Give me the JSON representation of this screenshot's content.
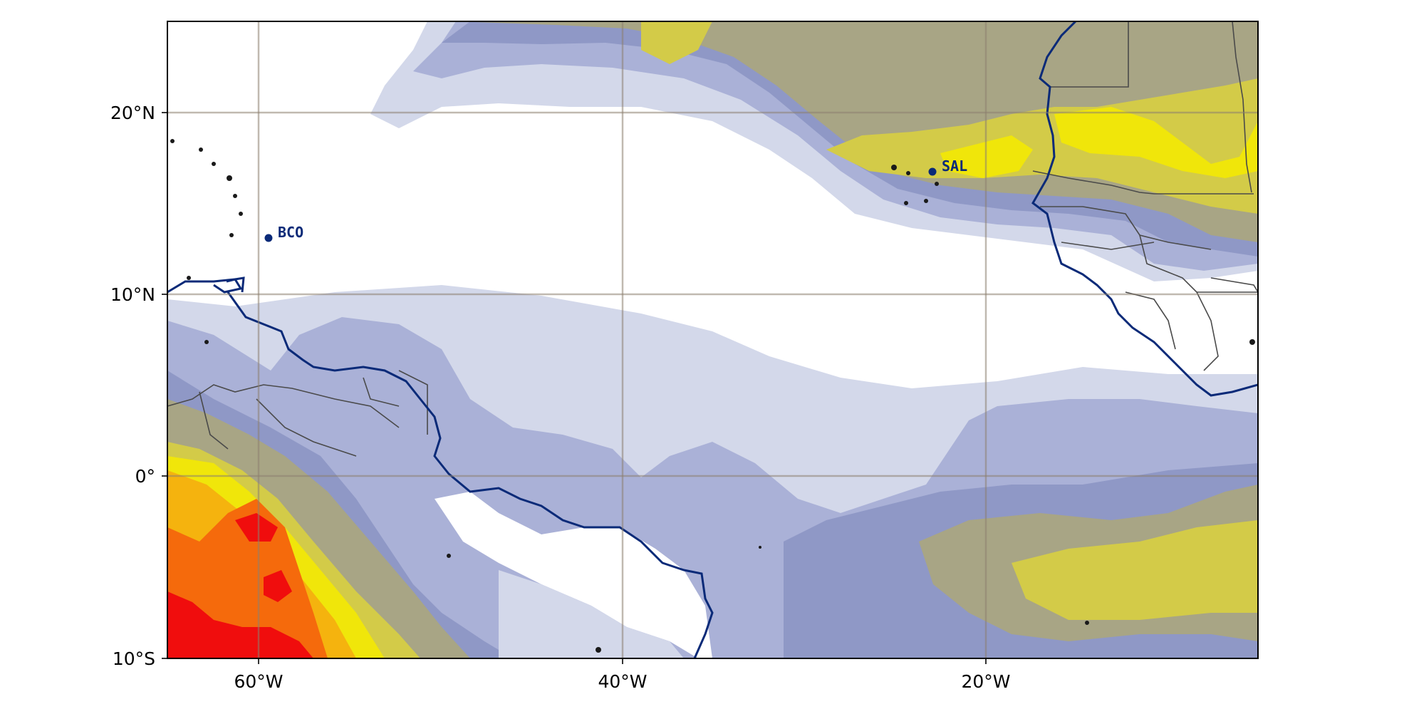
{
  "map": {
    "longitude_ticks": [
      "60°W",
      "40°W",
      "20°W"
    ],
    "latitude_ticks": [
      "20°N",
      "10°N",
      "0°",
      "10°S"
    ],
    "stations": [
      {
        "label": "BCO",
        "lon": -59.4,
        "lat": 13.2
      },
      {
        "label": "SAL",
        "lon": -22.9,
        "lat": 16.7
      }
    ],
    "extent": {
      "lon_min": -65,
      "lon_max": -5,
      "lat_min": -10,
      "lat_max": 25
    },
    "gridlines": true,
    "colors": {
      "level1": "#d3d8ea",
      "level2": "#aab1d7",
      "level3": "#8f98c6",
      "level4": "#a8a585",
      "level5": "#d3cb48",
      "level6": "#f0e60a",
      "level7": "#f5b30e",
      "level8": "#f56a0c",
      "level9": "#f00d0d",
      "coastline": "#0a2a78",
      "station": "#0a2a78",
      "gridline": "#8c7f6f"
    }
  }
}
